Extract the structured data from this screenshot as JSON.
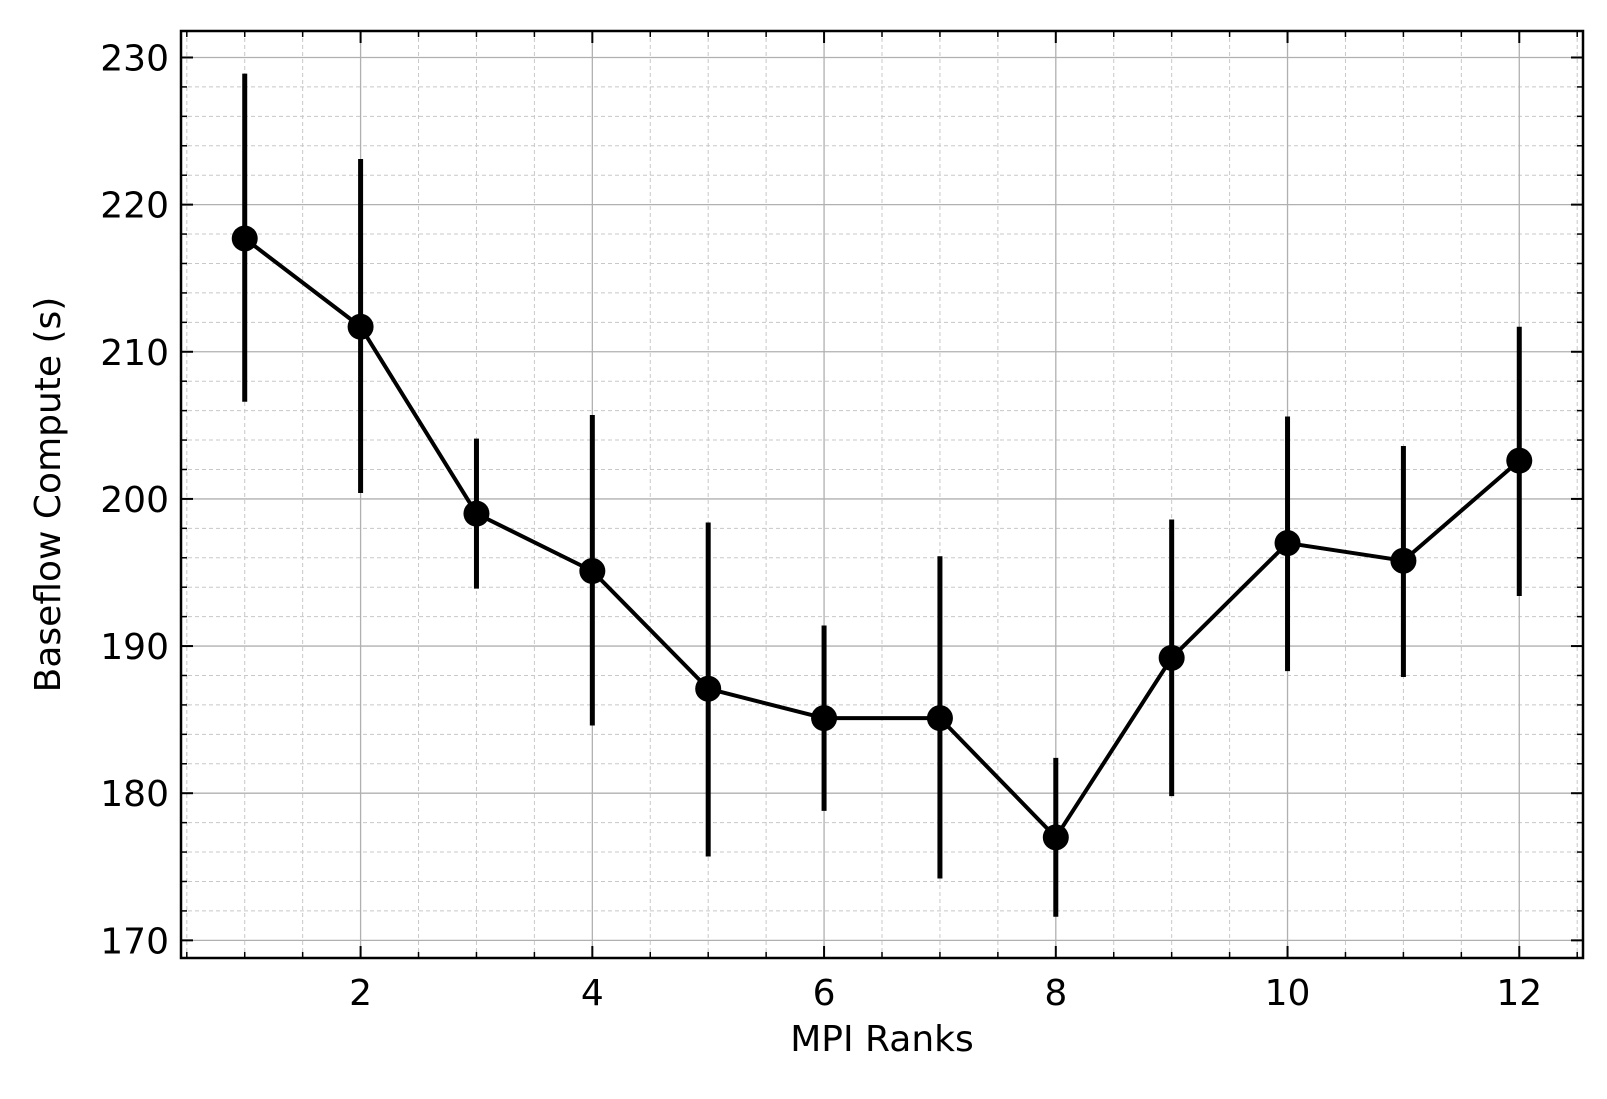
{
  "chart_data": {
    "type": "line",
    "title": "",
    "xlabel": "MPI Ranks",
    "ylabel": "Baseflow Compute (s)",
    "xlim": [
      0.45,
      12.55
    ],
    "ylim": [
      168.8,
      231.8
    ],
    "xticks": [
      2,
      4,
      6,
      8,
      10,
      12
    ],
    "yticks": [
      170,
      180,
      190,
      200,
      210,
      220,
      230
    ],
    "x_minor_step": 0.5,
    "y_minor_step": 2,
    "grid": true,
    "legend": false,
    "series": [
      {
        "x": [
          1,
          2,
          3,
          4,
          5,
          6,
          7,
          8,
          9,
          10,
          11,
          12
        ],
        "y": [
          217.7,
          211.7,
          199.0,
          195.1,
          187.1,
          185.1,
          185.1,
          177.0,
          189.2,
          197.0,
          195.8,
          202.6
        ],
        "err_low": [
          206.6,
          200.4,
          193.9,
          184.6,
          175.7,
          178.8,
          174.2,
          171.6,
          179.8,
          188.3,
          187.9,
          193.4
        ],
        "err_high": [
          228.9,
          223.1,
          204.1,
          205.7,
          198.4,
          191.4,
          196.1,
          182.4,
          198.6,
          205.6,
          203.6,
          211.7
        ],
        "color": "#000000"
      }
    ]
  }
}
